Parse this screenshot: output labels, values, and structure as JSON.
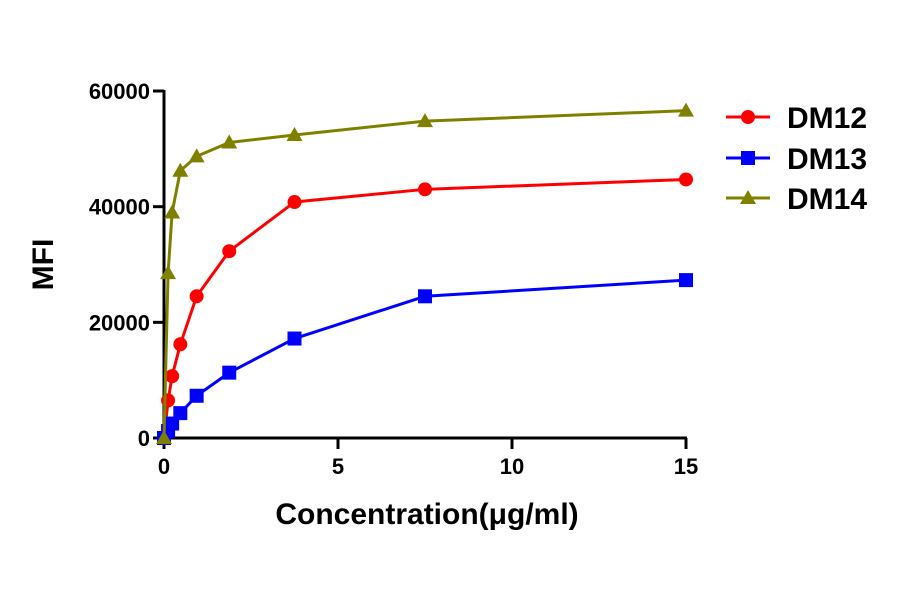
{
  "chart_data": {
    "type": "line",
    "xlabel": "Concentration(μg/ml)",
    "ylabel": "MFI",
    "xlim": [
      0,
      15
    ],
    "ylim": [
      0,
      60000
    ],
    "x_ticks": [
      0,
      5,
      10,
      15
    ],
    "y_ticks": [
      0,
      20000,
      40000,
      60000
    ],
    "x_tick_labels": [
      "0",
      "5",
      "10",
      "15"
    ],
    "y_tick_labels": [
      "0",
      "20000",
      "40000",
      "60000"
    ],
    "grid": false,
    "legend_position": "top-right",
    "series": [
      {
        "name": "DM12",
        "color": "#ff0000",
        "marker": "circle",
        "x": [
          0,
          0.117,
          0.234,
          0.469,
          0.938,
          1.875,
          3.75,
          7.5,
          15
        ],
        "y": [
          0,
          6500,
          10700,
          16200,
          24500,
          32300,
          40800,
          43000,
          44700
        ]
      },
      {
        "name": "DM13",
        "color": "#0000ff",
        "marker": "square",
        "x": [
          0,
          0.117,
          0.234,
          0.469,
          0.938,
          1.875,
          3.75,
          7.5,
          15
        ],
        "y": [
          0,
          1200,
          2500,
          4300,
          7300,
          11300,
          17200,
          24500,
          27300
        ]
      },
      {
        "name": "DM14",
        "color": "#808000",
        "marker": "triangle",
        "x": [
          0,
          0.117,
          0.234,
          0.469,
          0.938,
          1.875,
          3.75,
          7.5,
          15
        ],
        "y": [
          0,
          28500,
          39000,
          46200,
          48700,
          51100,
          52400,
          54800,
          56600
        ]
      }
    ]
  }
}
